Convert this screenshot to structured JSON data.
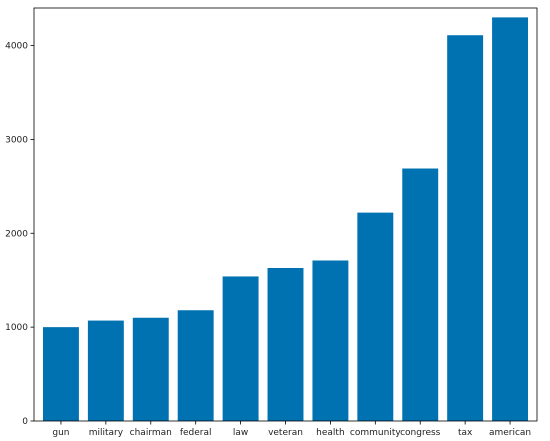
{
  "chart_data": {
    "type": "bar",
    "title": "",
    "xlabel": "",
    "ylabel": "",
    "categories": [
      "gun",
      "military",
      "chairman",
      "federal",
      "law",
      "veteran",
      "health",
      "community",
      "congress",
      "tax",
      "american"
    ],
    "values": [
      1000,
      1070,
      1100,
      1180,
      1540,
      1630,
      1710,
      2220,
      2690,
      4110,
      4300
    ],
    "ylim": [
      0,
      4400
    ],
    "yticks": [
      0,
      1000,
      2000,
      3000,
      4000
    ],
    "grid": false,
    "legend": "none",
    "bar_color": "#0072b2"
  }
}
